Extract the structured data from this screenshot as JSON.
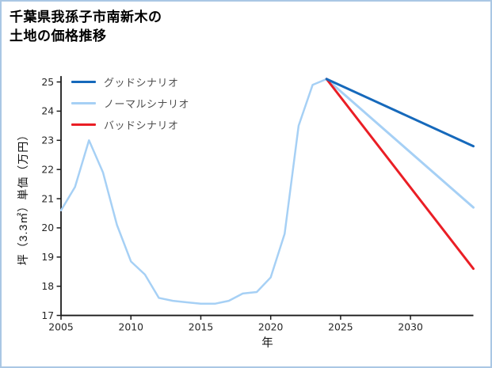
{
  "window": {
    "background": "#ffffff",
    "border_color": "#aac7e4"
  },
  "title": {
    "line1": "千葉県我孫子市南新木の",
    "line2": "土地の価格推移"
  },
  "chart_data": {
    "type": "line",
    "title": "千葉県我孫子市南新木の土地の価格推移",
    "xlabel": "年",
    "ylabel": "坪（3.3㎡）単価（万円）",
    "xlim": [
      2005,
      2034.5
    ],
    "ylim": [
      17,
      25.2
    ],
    "xticks": [
      2005,
      2010,
      2015,
      2020,
      2025,
      2030
    ],
    "yticks": [
      17,
      18,
      19,
      20,
      21,
      22,
      23,
      24,
      25
    ],
    "grid": false,
    "axis_color": "#1a1a1a",
    "tick_label_color": "#262626",
    "legend_position": "upper-left-inside",
    "history": {
      "color": "#a6d0f5",
      "line_width": 2.5,
      "x": [
        2005,
        2006,
        2007,
        2008,
        2009,
        2010,
        2011,
        2012,
        2013,
        2014,
        2015,
        2016,
        2017,
        2018,
        2019,
        2020,
        2021,
        2022,
        2023,
        2024
      ],
      "y": [
        20.6,
        21.4,
        23.0,
        21.9,
        20.1,
        18.85,
        18.4,
        17.6,
        17.5,
        17.45,
        17.4,
        17.4,
        17.5,
        17.75,
        17.8,
        18.3,
        19.8,
        23.5,
        24.9,
        25.1
      ]
    },
    "series": [
      {
        "name": "グッドシナリオ",
        "color": "#1669bb",
        "line_width": 3,
        "x": [
          2024,
          2034.5
        ],
        "y": [
          25.1,
          22.8
        ]
      },
      {
        "name": "ノーマルシナリオ",
        "color": "#a6d0f5",
        "line_width": 3,
        "x": [
          2024,
          2034.5
        ],
        "y": [
          25.1,
          20.7
        ]
      },
      {
        "name": "バッドシナリオ",
        "color": "#ea1e25",
        "line_width": 3,
        "x": [
          2024,
          2034.5
        ],
        "y": [
          25.1,
          18.6
        ]
      }
    ]
  }
}
